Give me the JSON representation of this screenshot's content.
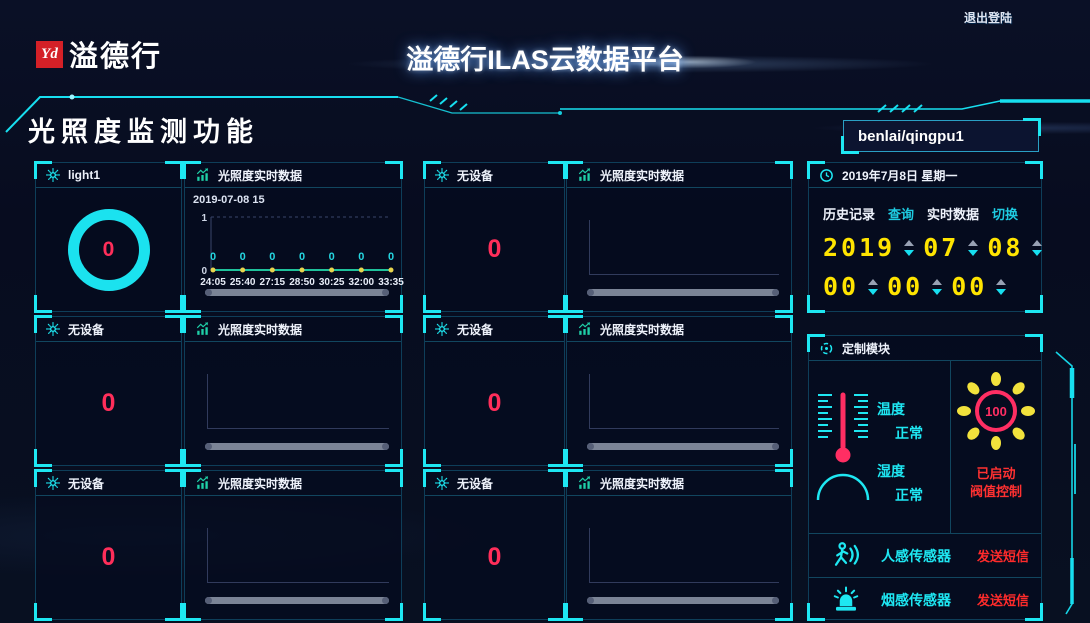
{
  "header": {
    "logo_mark": "Yd",
    "logo_text": "溢德行",
    "app_title": "溢德行ILAS云数据平台",
    "logout_label": "退出登陆"
  },
  "page": {
    "title": "光照度监测功能",
    "device_path_value": "benlai/qingpu1"
  },
  "labels": {
    "chart_panel_title": "光照度实时数据"
  },
  "groups": [
    {
      "device_name": "light1",
      "value": "0"
    },
    {
      "device_name": "无设备",
      "value": "0"
    },
    {
      "device_name": "无设备",
      "value": "0"
    },
    {
      "device_name": "无设备",
      "value": "0"
    },
    {
      "device_name": "无设备",
      "value": "0"
    },
    {
      "device_name": "无设备",
      "value": "0"
    }
  ],
  "chart_data": {
    "type": "line",
    "title": "2019-07-08 15",
    "x": [
      "24:05",
      "25:40",
      "27:15",
      "28:50",
      "30:25",
      "32:00",
      "33:35"
    ],
    "values": [
      0,
      0,
      0,
      0,
      0,
      0,
      0
    ],
    "point_labels": [
      "0",
      "0",
      "0",
      "0",
      "0",
      "0",
      "0"
    ],
    "ylim": [
      0,
      1
    ],
    "yticks": [
      "0",
      "1"
    ],
    "legend": "none",
    "grid": "dashed-top",
    "line_color": "#1fc29b",
    "dot_color": "#e8d44d",
    "label_color": "#25d6e0"
  },
  "clock_panel": {
    "header_date": "2019年7月8日 星期一",
    "history_label": "历史记录",
    "query_link": "查询",
    "realtime_label": "实时数据",
    "switch_link": "切换",
    "date_parts": [
      "2019",
      "07",
      "08"
    ],
    "time_parts": [
      "00",
      "00",
      "00"
    ]
  },
  "custom_panel": {
    "title": "定制模块",
    "temperature_label": "温度",
    "temperature_status": "正常",
    "humidity_label": "湿度",
    "humidity_status": "正常",
    "sun_value": "100",
    "threshold_line1": "已启动",
    "threshold_line2": "阀值控制",
    "sensor_rows": [
      {
        "label": "人感传感器",
        "action": "发送短信"
      },
      {
        "label": "烟感传感器",
        "action": "发送短信"
      }
    ]
  },
  "colors": {
    "accent_cyan": "#1ee7f2",
    "alert_red": "#ff2e5a",
    "digit_yellow": "#ffe400",
    "chart_teal": "#1fc29b",
    "dot_yellow": "#e8d44d"
  }
}
